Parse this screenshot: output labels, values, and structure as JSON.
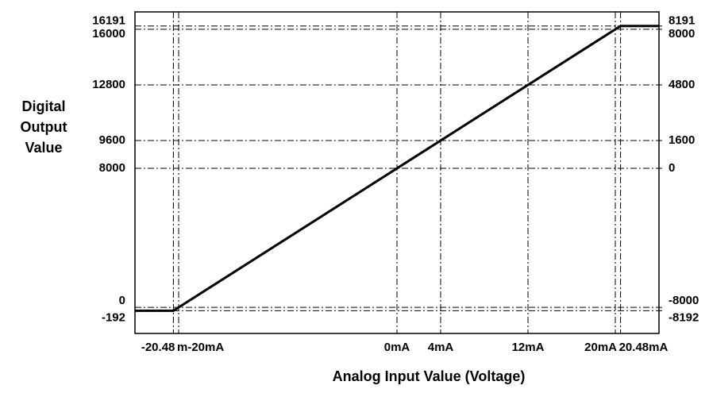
{
  "chart_data": {
    "type": "line",
    "xlabel": "Analog Input Value (Voltage)",
    "ylabel": [
      "Digital",
      "Output",
      "Value"
    ],
    "x": [
      -24,
      -20.48,
      20.48,
      24
    ],
    "series": [
      {
        "color": "#000000",
        "values": [
          -192,
          -192,
          16191,
          16191
        ]
      }
    ],
    "xlim": [
      -24,
      24
    ],
    "xticks": [
      {
        "value": -20.48,
        "label": "-20.48"
      },
      {
        "value": -20,
        "label": "m-20mA"
      },
      {
        "value": 0,
        "label": "0mA"
      },
      {
        "value": 4,
        "label": "4mA"
      },
      {
        "value": 12,
        "label": "12mA"
      },
      {
        "value": 20,
        "label": "20mA"
      },
      {
        "value": 20.48,
        "label": "20.48mA"
      }
    ],
    "ylim": [
      -1500,
      17000
    ],
    "yticks": [
      16191,
      16000,
      12800,
      9600,
      8000,
      0,
      -192
    ],
    "y2lim": [
      -9500,
      9000
    ],
    "y2ticks": [
      8191,
      8000,
      4800,
      1600,
      0,
      -8000,
      -8192
    ],
    "grid": true
  }
}
